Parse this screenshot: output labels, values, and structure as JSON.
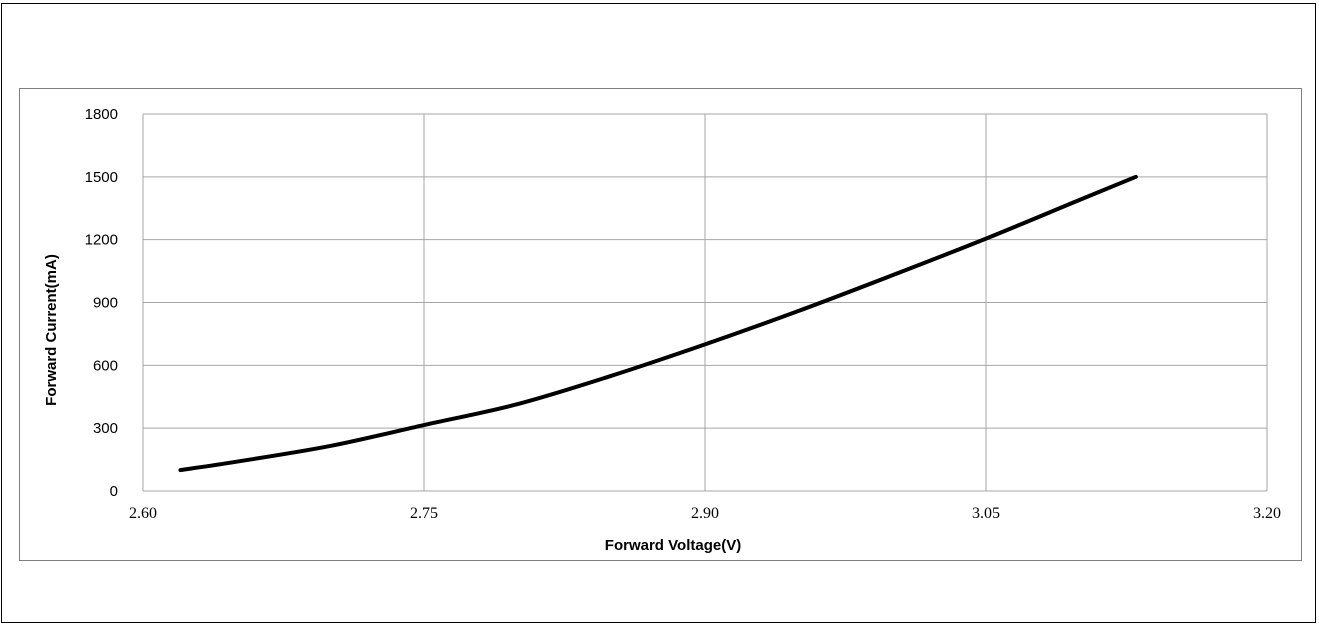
{
  "chart_data": {
    "type": "line",
    "title": "",
    "xlabel": "Forward Voltage(V)",
    "ylabel": "Forward Current(mA)",
    "xlim": [
      2.6,
      3.2
    ],
    "ylim": [
      0,
      1800
    ],
    "xticks": [
      2.6,
      2.75,
      2.9,
      3.05,
      3.2
    ],
    "yticks": [
      0,
      300,
      600,
      900,
      1200,
      1500,
      1800
    ],
    "xtick_labels": [
      "2.60",
      "2.75",
      "2.90",
      "3.05",
      "3.20"
    ],
    "ytick_labels": [
      "0",
      "300",
      "600",
      "900",
      "1200",
      "1500",
      "1800"
    ],
    "grid": true,
    "legend": "none",
    "line_color": "#000000",
    "grid_color": "#a6a6a6",
    "series": [
      {
        "x": [
          2.62,
          2.65,
          2.7,
          2.75,
          2.8,
          2.85,
          2.9,
          2.95,
          3.0,
          3.05,
          3.1,
          3.13
        ],
        "y": [
          100,
          140,
          215,
          315,
          415,
          550,
          700,
          860,
          1030,
          1205,
          1390,
          1500
        ]
      }
    ]
  }
}
